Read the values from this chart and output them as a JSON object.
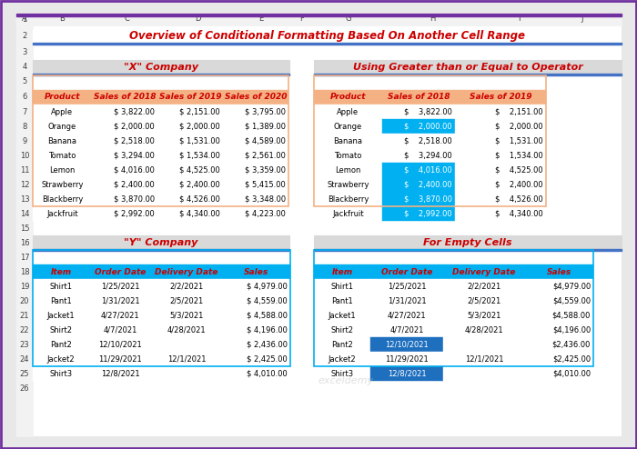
{
  "title": "Overview of Conditional Formatting Based On Another Cell Range",
  "title_color": "#CC0000",
  "section1_title": "\"X\" Company",
  "section2_title": "Using Greater than or Equal to Operator",
  "section3_title": "\"Y\" Company",
  "section4_title": "For Empty Cells",
  "bg_color": "#F2F2F2",
  "header_bg": "#F4B183",
  "header_text": "#CC0000",
  "section_title_bg": "#D9D9D9",
  "section_title_color": "#CC0000",
  "table1_headers": [
    "Product",
    "Sales of 2018",
    "Sales of 2019",
    "Sales of 2020"
  ],
  "table1_data": [
    [
      "Apple",
      "$ 3,822.00",
      "$ 2,151.00",
      "$ 3,795.00"
    ],
    [
      "Orange",
      "$ 2,000.00",
      "$ 2,000.00",
      "$ 1,389.00"
    ],
    [
      "Banana",
      "$ 2,518.00",
      "$ 1,531.00",
      "$ 4,589.00"
    ],
    [
      "Tomato",
      "$ 3,294.00",
      "$ 1,534.00",
      "$ 2,561.00"
    ],
    [
      "Lemon",
      "$ 4,016.00",
      "$ 4,525.00",
      "$ 3,359.00"
    ],
    [
      "Strawberry",
      "$ 2,400.00",
      "$ 2,400.00",
      "$ 5,415.00"
    ],
    [
      "Blackberry",
      "$ 3,870.00",
      "$ 4,526.00",
      "$ 3,348.00"
    ],
    [
      "Jackfruit",
      "$ 2,992.00",
      "$ 4,340.00",
      "$ 4,223.00"
    ]
  ],
  "table2_headers": [
    "Product",
    "Sales of 2018",
    "Sales of 2019"
  ],
  "table2_data": [
    [
      "Apple",
      "$    3,822.00",
      "$    2,151.00"
    ],
    [
      "Orange",
      "$    2,000.00",
      "$    2,000.00"
    ],
    [
      "Banana",
      "$    2,518.00",
      "$    1,531.00"
    ],
    [
      "Tomato",
      "$    3,294.00",
      "$    1,534.00"
    ],
    [
      "Lemon",
      "$    4,016.00",
      "$    4,525.00"
    ],
    [
      "Strawberry",
      "$    2,400.00",
      "$    2,400.00"
    ],
    [
      "Blackberry",
      "$    3,870.00",
      "$    4,526.00"
    ],
    [
      "Jackfruit",
      "$    2,992.00",
      "$    4,340.00"
    ]
  ],
  "table2_highlight_rows": [
    1,
    4,
    5,
    6,
    7
  ],
  "table2_highlight_col": 2,
  "highlight_color": "#00B0F0",
  "table3_headers": [
    "Item",
    "Order Date",
    "Delivery Date",
    "Sales"
  ],
  "table3_data": [
    [
      "Shirt1",
      "1/25/2021",
      "2/2/2021",
      "$ 4,979.00"
    ],
    [
      "Pant1",
      "1/31/2021",
      "2/5/2021",
      "$ 4,559.00"
    ],
    [
      "Jacket1",
      "4/27/2021",
      "5/3/2021",
      "$ 4,588.00"
    ],
    [
      "Shirt2",
      "4/7/2021",
      "4/28/2021",
      "$ 4,196.00"
    ],
    [
      "Pant2",
      "12/10/2021",
      "",
      "$ 2,436.00"
    ],
    [
      "Jacket2",
      "11/29/2021",
      "12/1/2021",
      "$ 2,425.00"
    ],
    [
      "Shirt3",
      "12/8/2021",
      "",
      "$ 4,010.00"
    ]
  ],
  "table3_header_bg": "#00B0F0",
  "table3_header_text": "#CC0000",
  "table4_headers": [
    "Item",
    "Order Date",
    "Delivery Date",
    "Sales"
  ],
  "table4_data": [
    [
      "Shirt1",
      "1/25/2021",
      "2/2/2021",
      "$4,979.00"
    ],
    [
      "Pant1",
      "1/31/2021",
      "2/5/2021",
      "$4,559.00"
    ],
    [
      "Jacket1",
      "4/27/2021",
      "5/3/2021",
      "$4,588.00"
    ],
    [
      "Shirt2",
      "4/7/2021",
      "4/28/2021",
      "$4,196.00"
    ],
    [
      "Pant2",
      "12/10/2021",
      "",
      "$2,436.00"
    ],
    [
      "Jacket2",
      "11/29/2021",
      "12/1/2021",
      "$2,425.00"
    ],
    [
      "Shirt3",
      "12/8/2021",
      "",
      "$4,010.00"
    ]
  ],
  "table4_highlight_rows": [
    4,
    6
  ],
  "table4_highlight_col": 1,
  "row_border_color": "#BFBFBF",
  "table_border_color": "#F4B183",
  "table3_border_color": "#00B0F0"
}
